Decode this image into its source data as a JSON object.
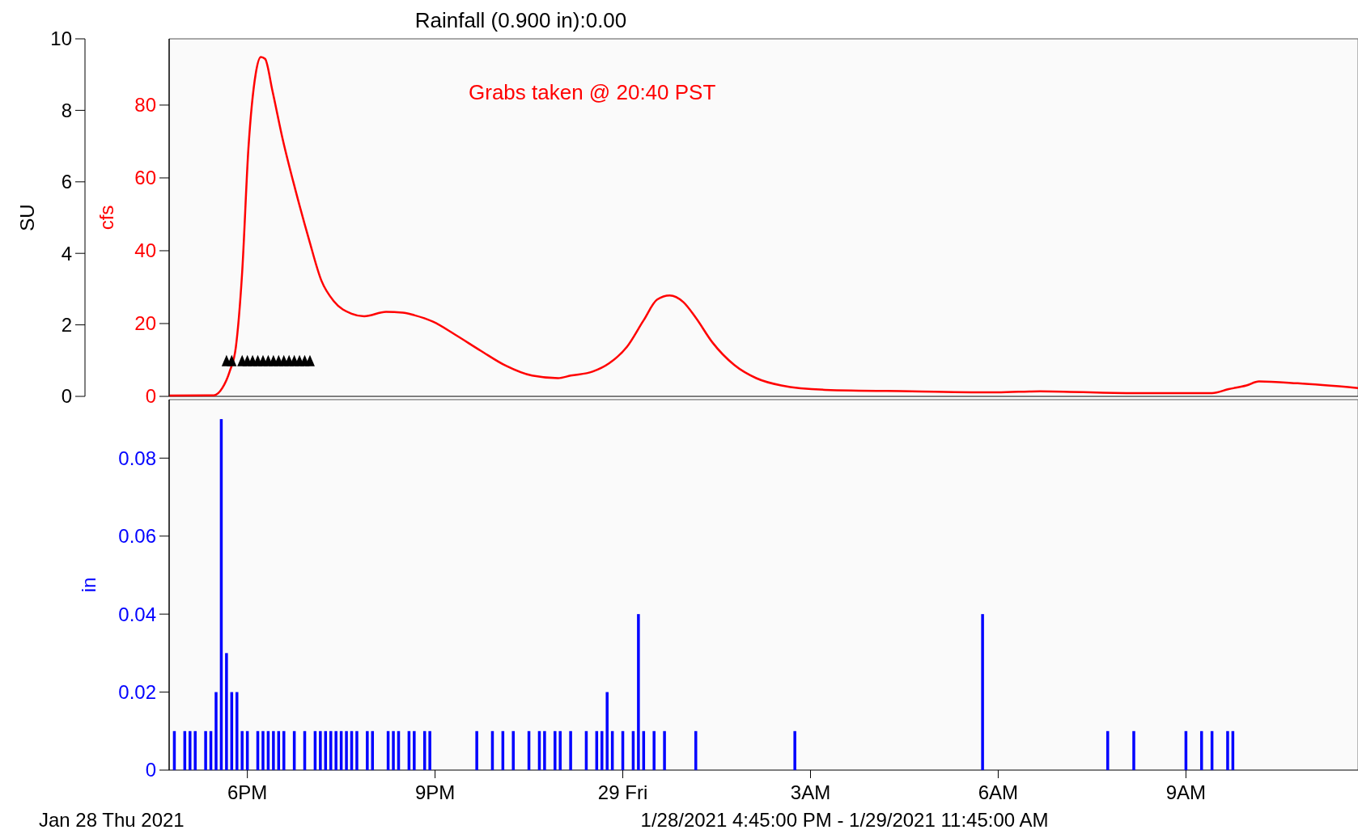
{
  "chart_data": [
    {
      "type": "line",
      "title": "Rainfall (0.900 in):0.00",
      "ylabel": "cfs",
      "y2label": "SU",
      "xlim": [
        "2021-01-28T16:45",
        "2021-01-29T11:45"
      ],
      "tick_labels": "y",
      "grid": false,
      "ylim": [
        0,
        98.2
      ],
      "yticks": [
        0,
        20,
        40,
        60,
        80
      ],
      "y2lim": [
        0,
        10
      ],
      "y2ticks": [
        0,
        2,
        4,
        6,
        8,
        10
      ],
      "annotations": [
        "Grabs taken @ 20:40 PST"
      ],
      "series": [
        {
          "color": "#ff0000",
          "marker": "none",
          "x": [
            "2021-01-28T16:45",
            "2021-01-28T17:28",
            "2021-01-28T17:36",
            "2021-01-28T17:43",
            "2021-01-28T17:49",
            "2021-01-28T17:55",
            "2021-01-28T18:01",
            "2021-01-28T18:08",
            "2021-01-28T18:13",
            "2021-01-28T18:17",
            "2021-01-28T18:24",
            "2021-01-28T18:34",
            "2021-01-28T18:46",
            "2021-01-28T18:59",
            "2021-01-28T19:11",
            "2021-01-28T19:23",
            "2021-01-28T19:40",
            "2021-01-28T19:52",
            "2021-01-28T20:13",
            "2021-01-28T20:29",
            "2021-01-28T20:40",
            "2021-01-28T20:58",
            "2021-01-28T21:19",
            "2021-01-28T21:44",
            "2021-01-28T22:08",
            "2021-01-28T22:33",
            "2021-01-28T22:58",
            "2021-01-28T23:10",
            "2021-01-28T23:31",
            "2021-01-28T23:47",
            "2021-01-29T00:04",
            "2021-01-29T00:20",
            "2021-01-29T00:33",
            "2021-01-29T00:45",
            "2021-01-29T00:58",
            "2021-01-29T01:10",
            "2021-01-29T01:26",
            "2021-01-29T01:47",
            "2021-01-29T02:08",
            "2021-01-29T02:32",
            "2021-01-29T03:14",
            "2021-01-29T04:37",
            "2021-01-29T05:59",
            "2021-01-29T06:40",
            "2021-01-29T08:03",
            "2021-01-29T09:25",
            "2021-01-29T09:41",
            "2021-01-29T09:58",
            "2021-01-29T10:10",
            "2021-01-29T10:47",
            "2021-01-29T11:45"
          ],
          "values": [
            0.2,
            0.3,
            2.3,
            6.8,
            13.6,
            34,
            68,
            88.6,
            93.2,
            92.7,
            84,
            70.5,
            56.8,
            43.2,
            31.8,
            26.1,
            22.7,
            22,
            23.2,
            23,
            22.3,
            20.5,
            17,
            12.5,
            8.4,
            5.7,
            5,
            5.7,
            6.8,
            9.1,
            13.6,
            20.9,
            26.6,
            27.7,
            25.9,
            21.6,
            14.8,
            8.6,
            5,
            3,
            1.8,
            1.4,
            1.1,
            1.4,
            0.9,
            0.9,
            2,
            3,
            4.1,
            3.6,
            2.3
          ]
        },
        {
          "type": "scatter",
          "axis": "y2",
          "color": "#000000",
          "marker": "triangle",
          "x": [
            "2021-01-28T17:40",
            "2021-01-28T17:45",
            "2021-01-28T17:55",
            "2021-01-28T18:00",
            "2021-01-28T18:05",
            "2021-01-28T18:10",
            "2021-01-28T18:15",
            "2021-01-28T18:20",
            "2021-01-28T18:25",
            "2021-01-28T18:30",
            "2021-01-28T18:35",
            "2021-01-28T18:40",
            "2021-01-28T18:45",
            "2021-01-28T18:50",
            "2021-01-28T18:55",
            "2021-01-28T19:00"
          ],
          "values": [
            1,
            1,
            1,
            1,
            1,
            1,
            1,
            1,
            1,
            1,
            1,
            1,
            1,
            1,
            1,
            1
          ]
        }
      ]
    },
    {
      "type": "bar",
      "ylabel": "in",
      "xlabel": "1/28/2021 4:45:00 PM - 1/29/2021 11:45:00 AM",
      "annotations": [
        "Jan 28 Thu 2021"
      ],
      "grid": false,
      "color": "#0000ff",
      "xlim": [
        "2021-01-28T16:45",
        "2021-01-29T11:45"
      ],
      "xticks": [
        {
          "value": "2021-01-28T18:00",
          "label": "6PM"
        },
        {
          "value": "2021-01-28T21:00",
          "label": "9PM"
        },
        {
          "value": "2021-01-29T00:00",
          "label": "29 Fri"
        },
        {
          "value": "2021-01-29T03:00",
          "label": "3AM"
        },
        {
          "value": "2021-01-29T06:00",
          "label": "6AM"
        },
        {
          "value": "2021-01-29T09:00",
          "label": "9AM"
        }
      ],
      "ylim": [
        0,
        0.095
      ],
      "yticks": [
        0,
        0.02,
        0.04,
        0.06,
        0.08
      ],
      "x": [
        "2021-01-28T16:50",
        "2021-01-28T17:00",
        "2021-01-28T17:05",
        "2021-01-28T17:10",
        "2021-01-28T17:20",
        "2021-01-28T17:25",
        "2021-01-28T17:30",
        "2021-01-28T17:35",
        "2021-01-28T17:40",
        "2021-01-28T17:45",
        "2021-01-28T17:50",
        "2021-01-28T17:55",
        "2021-01-28T18:00",
        "2021-01-28T18:10",
        "2021-01-28T18:15",
        "2021-01-28T18:20",
        "2021-01-28T18:25",
        "2021-01-28T18:30",
        "2021-01-28T18:35",
        "2021-01-28T18:45",
        "2021-01-28T18:55",
        "2021-01-28T19:05",
        "2021-01-28T19:10",
        "2021-01-28T19:15",
        "2021-01-28T19:20",
        "2021-01-28T19:25",
        "2021-01-28T19:30",
        "2021-01-28T19:35",
        "2021-01-28T19:40",
        "2021-01-28T19:45",
        "2021-01-28T19:55",
        "2021-01-28T20:00",
        "2021-01-28T20:15",
        "2021-01-28T20:20",
        "2021-01-28T20:25",
        "2021-01-28T20:35",
        "2021-01-28T20:40",
        "2021-01-28T20:50",
        "2021-01-28T20:55",
        "2021-01-28T21:40",
        "2021-01-28T21:55",
        "2021-01-28T22:05",
        "2021-01-28T22:15",
        "2021-01-28T22:30",
        "2021-01-28T22:40",
        "2021-01-28T22:45",
        "2021-01-28T22:55",
        "2021-01-28T23:00",
        "2021-01-28T23:10",
        "2021-01-28T23:25",
        "2021-01-28T23:35",
        "2021-01-28T23:40",
        "2021-01-28T23:45",
        "2021-01-28T23:50",
        "2021-01-29T00:00",
        "2021-01-29T00:10",
        "2021-01-29T00:15",
        "2021-01-29T00:20",
        "2021-01-29T00:30",
        "2021-01-29T00:40",
        "2021-01-29T01:10",
        "2021-01-29T02:45",
        "2021-01-29T05:45",
        "2021-01-29T07:45",
        "2021-01-29T08:10",
        "2021-01-29T09:00",
        "2021-01-29T09:15",
        "2021-01-29T09:25",
        "2021-01-29T09:40",
        "2021-01-29T09:45"
      ],
      "values": [
        0.01,
        0.01,
        0.01,
        0.01,
        0.01,
        0.01,
        0.02,
        0.09,
        0.03,
        0.02,
        0.02,
        0.01,
        0.01,
        0.01,
        0.01,
        0.01,
        0.01,
        0.01,
        0.01,
        0.01,
        0.01,
        0.01,
        0.01,
        0.01,
        0.01,
        0.01,
        0.01,
        0.01,
        0.01,
        0.01,
        0.01,
        0.01,
        0.01,
        0.01,
        0.01,
        0.01,
        0.01,
        0.01,
        0.01,
        0.01,
        0.01,
        0.01,
        0.01,
        0.01,
        0.01,
        0.01,
        0.01,
        0.01,
        0.01,
        0.01,
        0.01,
        0.01,
        0.02,
        0.01,
        0.01,
        0.01,
        0.04,
        0.01,
        0.01,
        0.01,
        0.01,
        0.01,
        0.04,
        0.01,
        0.01,
        0.01,
        0.01,
        0.01,
        0.01,
        0.01
      ]
    }
  ]
}
